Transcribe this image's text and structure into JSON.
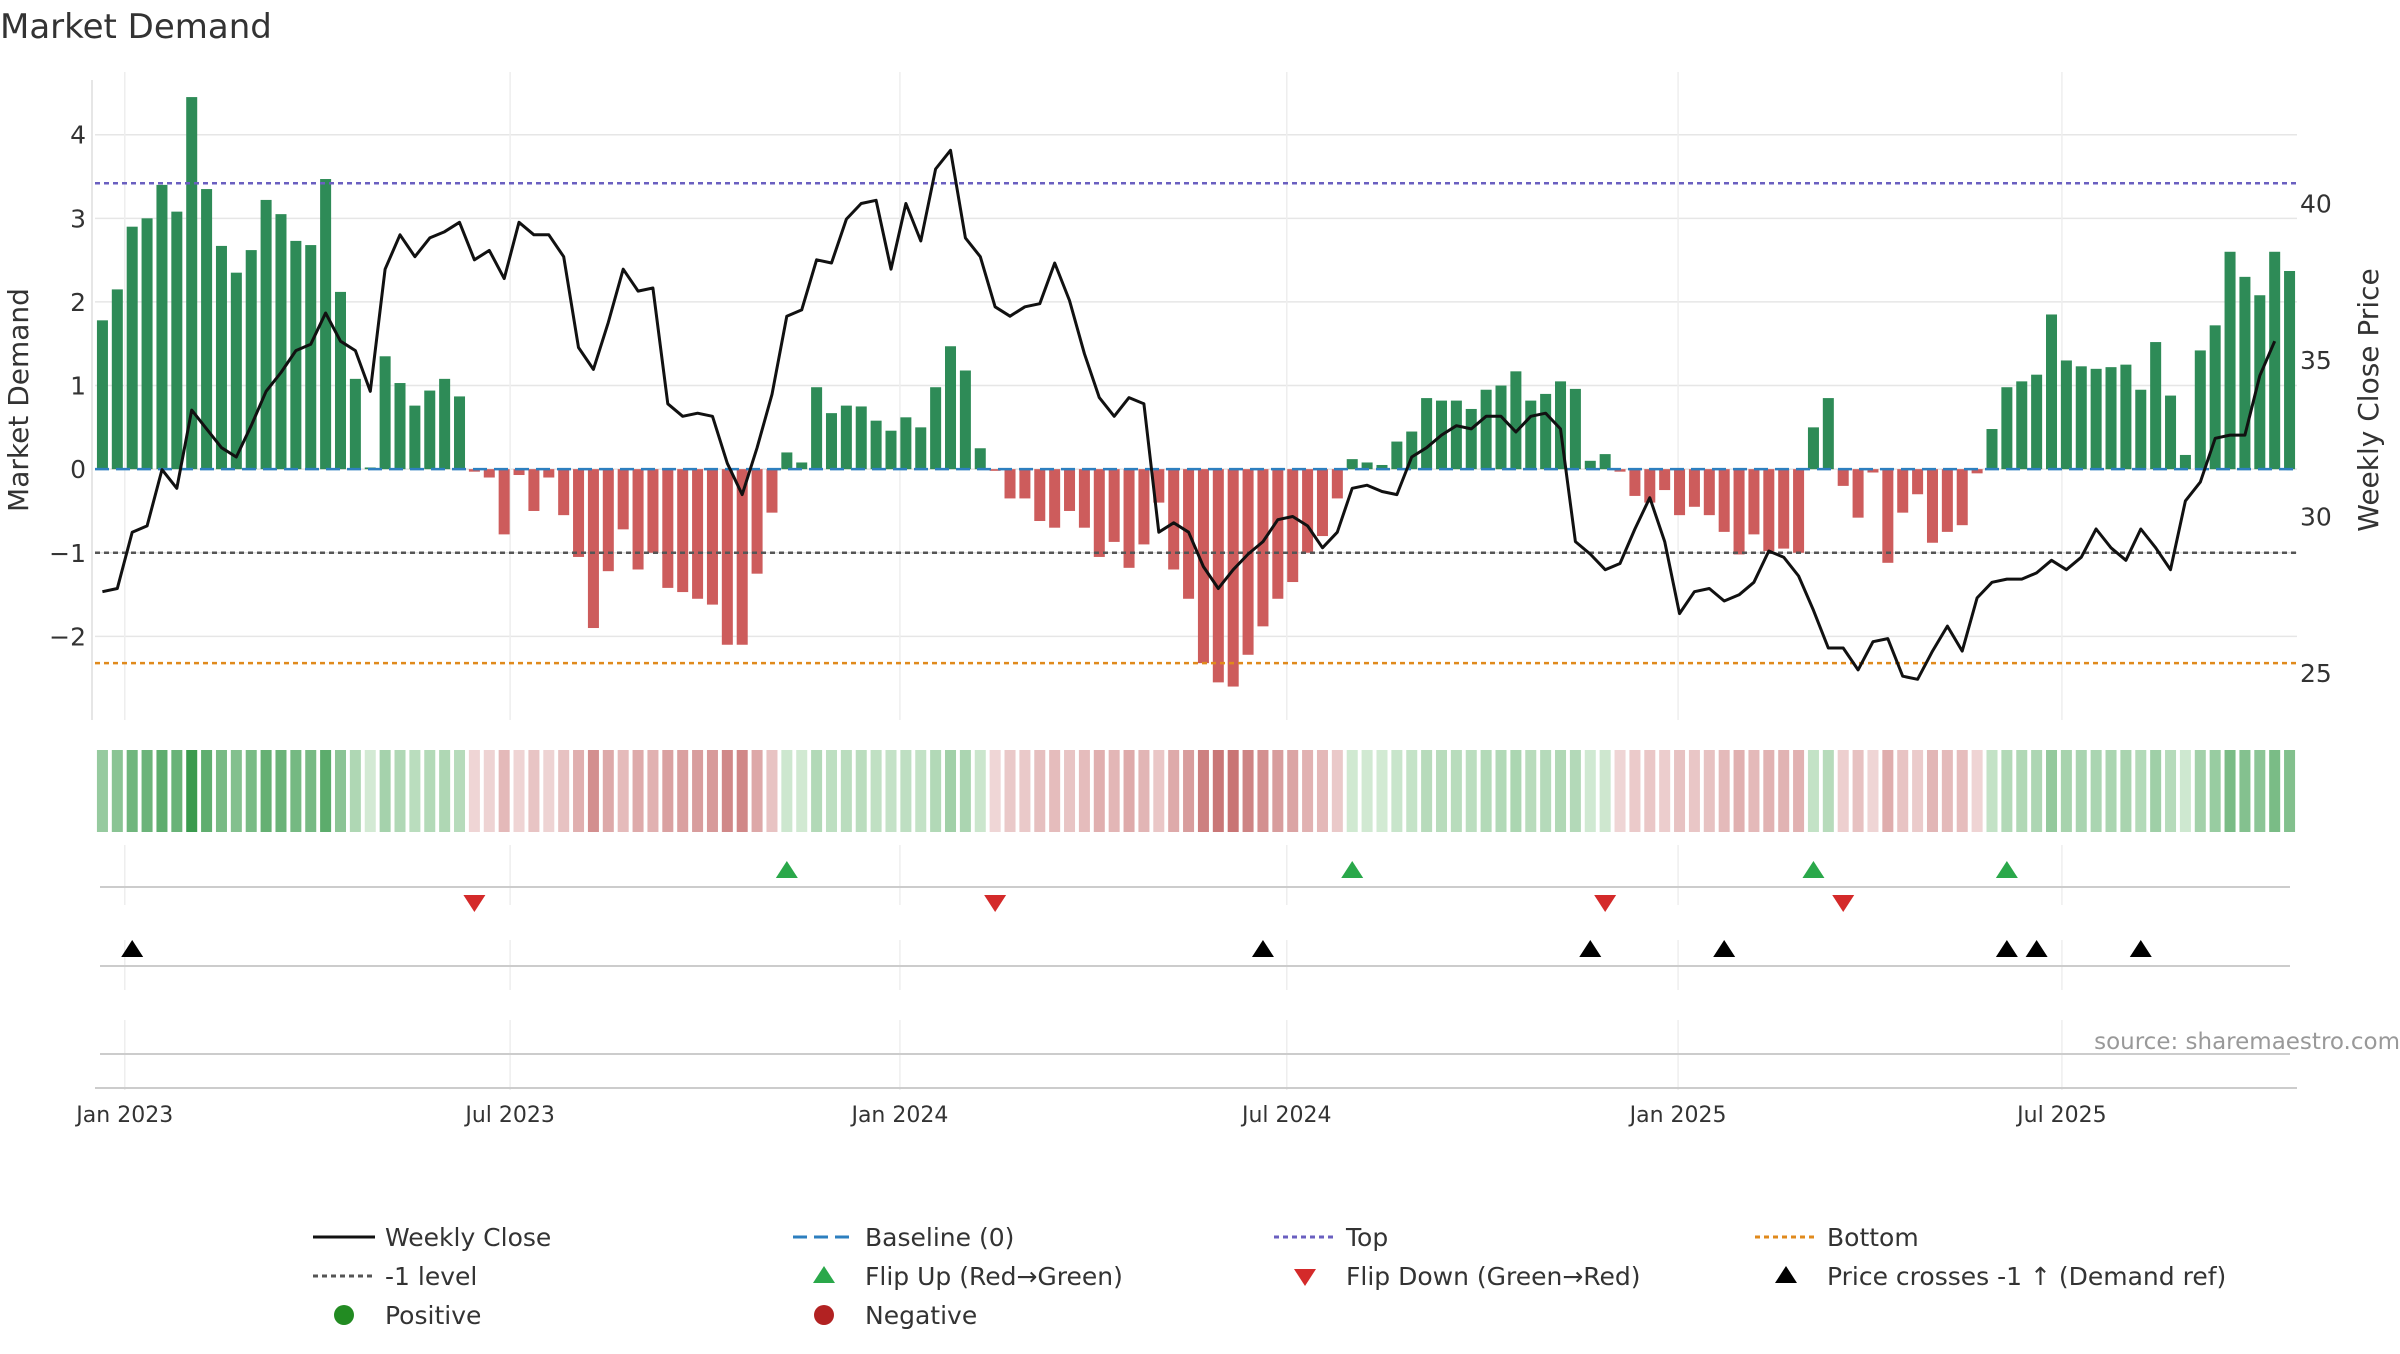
{
  "chart_data": {
    "type": "bar",
    "title": "Market Demand",
    "ylabel": "Market Demand",
    "y2label": "Weekly Close Price",
    "source": "source: sharemaestro.com",
    "ylim": [
      -3.0,
      4.75
    ],
    "y2lim": [
      23.5,
      44.2
    ],
    "yticks": [
      4,
      3,
      2,
      1,
      0,
      -1,
      -2
    ],
    "ytick_labels": [
      "4",
      "3",
      "2",
      "1",
      "0",
      "−1",
      "−2"
    ],
    "y2ticks": [
      40,
      35,
      30,
      25
    ],
    "y2tick_labels": [
      "40",
      "35",
      "30",
      "25"
    ],
    "x_ticks": [
      {
        "label": "Jan 2023",
        "week": 1.5
      },
      {
        "label": "Jul 2023",
        "week": 27.4
      },
      {
        "label": "Jan 2024",
        "week": 53.6
      },
      {
        "label": "Jul 2024",
        "week": 79.6
      },
      {
        "label": "Jan 2025",
        "week": 105.9
      },
      {
        "label": "Jul 2025",
        "week": 131.7
      }
    ],
    "series": [
      {
        "name": "Market Demand",
        "type": "bar",
        "values": [
          1.78,
          2.15,
          2.9,
          3.0,
          3.4,
          3.08,
          4.45,
          3.35,
          2.67,
          2.35,
          2.62,
          3.22,
          3.05,
          2.73,
          2.68,
          3.47,
          2.12,
          1.08,
          0.02,
          1.35,
          1.03,
          0.76,
          0.94,
          1.08,
          0.87,
          -0.03,
          -0.1,
          -0.78,
          -0.07,
          -0.5,
          -0.1,
          -0.55,
          -1.05,
          -1.9,
          -1.22,
          -0.72,
          -1.2,
          -1.0,
          -1.42,
          -1.47,
          -1.55,
          -1.62,
          -2.1,
          -2.1,
          -1.25,
          -0.52,
          0.2,
          0.08,
          0.98,
          0.67,
          0.76,
          0.75,
          0.58,
          0.46,
          0.62,
          0.5,
          0.98,
          1.47,
          1.18,
          0.25,
          -0.02,
          -0.35,
          -0.35,
          -0.62,
          -0.7,
          -0.5,
          -0.7,
          -1.05,
          -0.87,
          -1.18,
          -0.9,
          -0.4,
          -1.2,
          -1.55,
          -2.32,
          -2.55,
          -2.6,
          -2.22,
          -1.88,
          -1.55,
          -1.35,
          -1.0,
          -0.8,
          -0.35,
          0.12,
          0.08,
          0.05,
          0.33,
          0.45,
          0.85,
          0.82,
          0.82,
          0.72,
          0.95,
          1.0,
          1.17,
          0.82,
          0.9,
          1.05,
          0.96,
          0.1,
          0.18,
          -0.03,
          -0.32,
          -0.4,
          -0.25,
          -0.55,
          -0.45,
          -0.55,
          -0.75,
          -1.02,
          -0.78,
          -0.98,
          -0.95,
          -1.0,
          0.5,
          0.85,
          -0.2,
          -0.58,
          -0.04,
          -1.12,
          -0.52,
          -0.3,
          -0.88,
          -0.75,
          -0.67,
          -0.05,
          0.48,
          0.98,
          1.05,
          1.13,
          1.85,
          1.3,
          1.23,
          1.2,
          1.22,
          1.25,
          0.95,
          1.52,
          0.88,
          0.17,
          1.42,
          1.72,
          2.6,
          2.3,
          2.08,
          2.6,
          2.37
        ]
      },
      {
        "name": "Weekly Close",
        "type": "line",
        "axis": "y2",
        "values": [
          27.6,
          27.7,
          29.5,
          29.7,
          31.5,
          30.9,
          33.4,
          32.8,
          32.2,
          31.9,
          32.9,
          34.0,
          34.6,
          35.3,
          35.5,
          36.5,
          35.6,
          35.3,
          34.0,
          37.9,
          39.0,
          38.3,
          38.9,
          39.1,
          39.4,
          38.2,
          38.5,
          37.6,
          39.4,
          39.0,
          39.0,
          38.3,
          35.4,
          34.7,
          36.2,
          37.9,
          37.2,
          37.3,
          33.6,
          33.2,
          33.3,
          33.2,
          31.7,
          30.7,
          32.2,
          33.9,
          36.4,
          36.6,
          38.2,
          38.1,
          39.5,
          40.0,
          40.1,
          37.9,
          40.0,
          38.8,
          41.1,
          41.7,
          38.9,
          38.3,
          36.7,
          36.4,
          36.7,
          36.8,
          38.1,
          36.9,
          35.2,
          33.8,
          33.2,
          33.8,
          33.6,
          29.5,
          29.8,
          29.5,
          28.4,
          27.7,
          28.3,
          28.8,
          29.2,
          29.9,
          30.0,
          29.7,
          29.0,
          29.5,
          30.9,
          31.0,
          30.8,
          30.7,
          31.9,
          32.2,
          32.6,
          32.9,
          32.8,
          33.2,
          33.2,
          32.7,
          33.2,
          33.3,
          32.8,
          29.2,
          28.8,
          28.3,
          28.5,
          29.6,
          30.6,
          29.2,
          26.9,
          27.6,
          27.7,
          27.3,
          27.5,
          27.9,
          28.9,
          28.7,
          28.1,
          27.0,
          25.8,
          25.8,
          25.1,
          26.0,
          26.1,
          24.9,
          24.8,
          25.7,
          26.5,
          25.7,
          27.4,
          27.9,
          28.0,
          28.0,
          28.2,
          28.6,
          28.3,
          28.7,
          29.6,
          29.0,
          28.6,
          29.6,
          29.0,
          28.3,
          30.5,
          31.1,
          32.5,
          32.6,
          32.6,
          34.5,
          35.6
        ]
      }
    ],
    "reference_lines": [
      {
        "name": "Baseline (0)",
        "value": 0,
        "axis": "y",
        "color": "#2d7fbf",
        "dash": "14,7"
      },
      {
        "name": "Top",
        "value": 3.42,
        "axis": "y",
        "color": "#6a5fc0",
        "dash": "5,4"
      },
      {
        "name": "Bottom",
        "value": -2.32,
        "axis": "y",
        "color": "#e08a1c",
        "dash": "5,4"
      },
      {
        "name": "-1 level",
        "value": -1,
        "axis": "y",
        "color": "#555555",
        "dash": "5,4"
      }
    ],
    "flip_up_weeks": [
      46,
      84,
      115,
      128
    ],
    "flip_down_weeks": [
      25,
      60,
      101,
      117
    ],
    "price_cross_weeks": [
      2,
      78,
      100,
      109,
      128,
      130,
      137
    ],
    "legend": {
      "position": "bottom",
      "items": [
        {
          "label": "Weekly Close",
          "kind": "line",
          "color": "#111111",
          "dash": ""
        },
        {
          "label": "Baseline (0)",
          "kind": "line",
          "color": "#2d7fbf",
          "dash": "14,7"
        },
        {
          "label": "Top",
          "kind": "line",
          "color": "#6a5fc0",
          "dash": "5,4"
        },
        {
          "label": "Bottom",
          "kind": "line",
          "color": "#e08a1c",
          "dash": "5,4"
        },
        {
          "label": "-1 level",
          "kind": "line",
          "color": "#555555",
          "dash": "5,4"
        },
        {
          "label": "Flip Up (Red→Green)",
          "kind": "tri-up",
          "color": "#2aa84a"
        },
        {
          "label": "Flip Down (Green→Red)",
          "kind": "tri-down",
          "color": "#d42a2a"
        },
        {
          "label": "Price crosses -1 ↑ (Demand ref)",
          "kind": "tri-up",
          "color": "#000000"
        },
        {
          "label": "Positive",
          "kind": "dot",
          "color": "#228b22"
        },
        {
          "label": "Negative",
          "kind": "dot",
          "color": "#b22222"
        }
      ]
    },
    "colors": {
      "positive_bar": "#2e8b57",
      "negative_bar": "#cd5c5c",
      "close_line": "#111111",
      "grid": "#e6e6e6",
      "text": "#333333"
    }
  }
}
